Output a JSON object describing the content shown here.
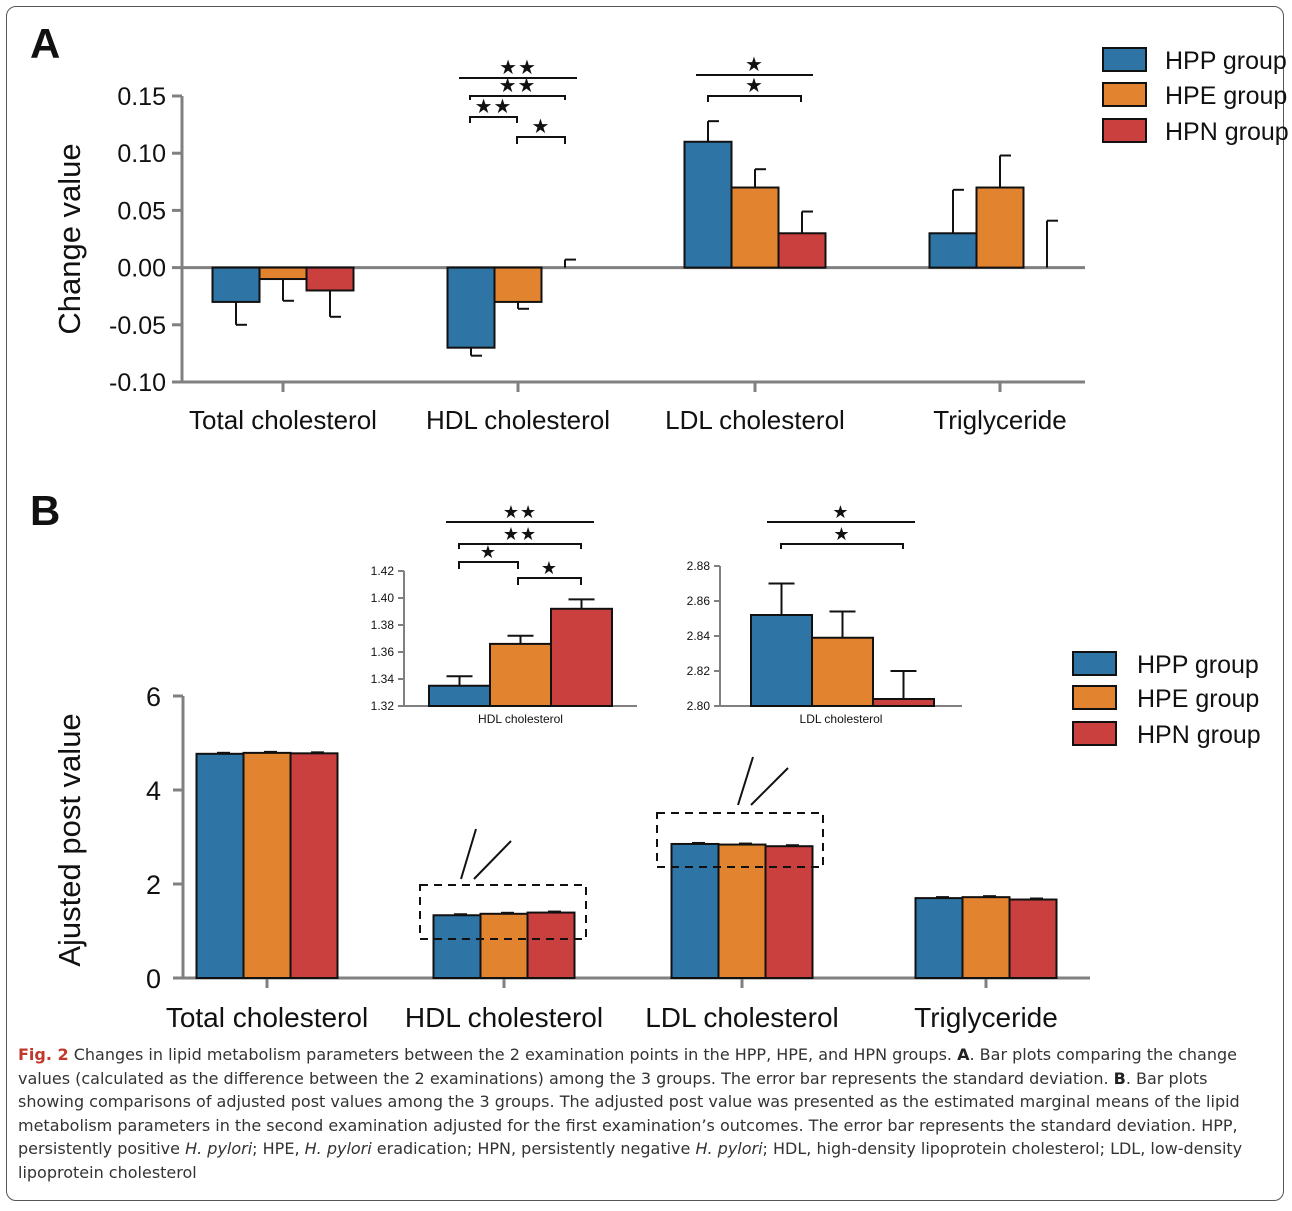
{
  "colors": {
    "HPP": "#2e74a4",
    "HPE": "#e28330",
    "HPN": "#c9403e",
    "axis": "#808080"
  },
  "chart_data": [
    {
      "type": "bar",
      "panel": "A",
      "ylabel": "Change value",
      "categories": [
        "Total cholesterol",
        "HDL cholesterol",
        "LDL cholesterol",
        "Triglyceride"
      ],
      "ylim": [
        -0.1,
        0.15
      ],
      "yticks": [
        "-0.10",
        "-0.05",
        "0.00",
        "0.05",
        "0.10",
        "0.15"
      ],
      "legend_position": "top-right",
      "series": [
        {
          "name": "HPP group",
          "values": [
            -0.03,
            -0.07,
            0.11,
            0.03
          ],
          "errors": [
            0.02,
            0.007,
            0.018,
            0.038
          ]
        },
        {
          "name": "HPE group",
          "values": [
            -0.01,
            -0.03,
            0.07,
            0.07
          ],
          "errors": [
            0.019,
            0.006,
            0.016,
            0.028
          ]
        },
        {
          "name": "HPN group",
          "values": [
            -0.02,
            0.0,
            0.03,
            0.0
          ],
          "errors": [
            0.023,
            0.007,
            0.019,
            0.041
          ]
        }
      ],
      "significance": [
        "★★",
        "★★",
        "★★",
        "★",
        "★",
        "★"
      ]
    },
    {
      "type": "bar",
      "panel": "B",
      "ylabel": "Ajusted post value",
      "categories": [
        "Total cholesterol",
        "HDL cholesterol",
        "LDL cholesterol",
        "Triglyceride"
      ],
      "ylim": [
        0,
        6
      ],
      "yticks": [
        "0",
        "2",
        "4",
        "6"
      ],
      "legend_position": "right",
      "series": [
        {
          "name": "HPP group",
          "values": [
            4.77,
            1.335,
            2.852,
            1.7
          ]
        },
        {
          "name": "HPE group",
          "values": [
            4.79,
            1.366,
            2.839,
            1.72
          ]
        },
        {
          "name": "HPN group",
          "values": [
            4.78,
            1.392,
            2.804,
            1.67
          ]
        }
      ]
    },
    {
      "type": "bar",
      "panel": "B-inset",
      "xlabel": "HDL cholesterol",
      "ylim": [
        1.32,
        1.42
      ],
      "yticks": [
        "1.32",
        "1.34",
        "1.36",
        "1.38",
        "1.40",
        "1.42"
      ],
      "series": [
        {
          "name": "HPP group",
          "values": [
            1.335
          ],
          "errors": [
            0.007
          ]
        },
        {
          "name": "HPE group",
          "values": [
            1.366
          ],
          "errors": [
            0.006
          ]
        },
        {
          "name": "HPN group",
          "values": [
            1.392
          ],
          "errors": [
            0.007
          ]
        }
      ],
      "significance": [
        "★★",
        "★★",
        "★",
        "★"
      ]
    },
    {
      "type": "bar",
      "panel": "B-inset",
      "xlabel": "LDL cholesterol",
      "ylim": [
        2.8,
        2.88
      ],
      "yticks": [
        "2.80",
        "2.82",
        "2.84",
        "2.86",
        "2.88"
      ],
      "series": [
        {
          "name": "HPP group",
          "values": [
            2.852
          ],
          "errors": [
            0.018
          ]
        },
        {
          "name": "HPE group",
          "values": [
            2.839
          ],
          "errors": [
            0.015
          ]
        },
        {
          "name": "HPN group",
          "values": [
            2.804
          ],
          "errors": [
            0.016
          ]
        }
      ],
      "significance": [
        "★",
        "★"
      ]
    }
  ],
  "caption": {
    "fig_label": "Fig. 2",
    "t1": " Changes in lipid metabolism parameters between the 2 examination points in the HPP, HPE, and HPN groups. ",
    "a": "A",
    "t2": ". Bar plots comparing the change values (calculated as the difference between the 2 examinations) among the 3 groups. The error bar represents the standard deviation. ",
    "b": "B",
    "t3": ". Bar plots showing comparisons of adjusted post values among the 3 groups. The adjusted post value was presented as the estimated marginal means of the lipid metabolism parameters in the second examination adjusted for the first examination’s outcomes. The error bar represents the standard deviation. HPP, persistently positive ",
    "hp1": "H. pylori",
    "t4": "; HPE, ",
    "hp2": "H. pylori",
    "t5": " eradication; HPN, persistently negative ",
    "hp3": "H. pylori",
    "t6": "; HDL, high-density lipoprotein cholesterol; LDL, low-density lipoprotein cholesterol"
  }
}
